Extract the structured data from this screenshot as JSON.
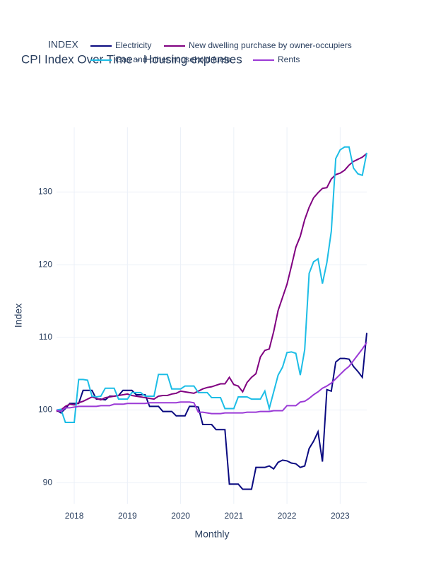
{
  "chart_data": {
    "type": "line",
    "title": "CPI Index Over Time - Housing expenses",
    "x_label": "Monthly",
    "y_label": "Index",
    "legend_title": "INDEX",
    "x": [
      "2017-09",
      "2017-10",
      "2017-11",
      "2017-12",
      "2018-01",
      "2018-02",
      "2018-03",
      "2018-04",
      "2018-05",
      "2018-06",
      "2018-07",
      "2018-08",
      "2018-09",
      "2018-10",
      "2018-11",
      "2018-12",
      "2019-01",
      "2019-02",
      "2019-03",
      "2019-04",
      "2019-05",
      "2019-06",
      "2019-07",
      "2019-08",
      "2019-09",
      "2019-10",
      "2019-11",
      "2019-12",
      "2020-01",
      "2020-02",
      "2020-03",
      "2020-04",
      "2020-05",
      "2020-06",
      "2020-07",
      "2020-08",
      "2020-09",
      "2020-10",
      "2020-11",
      "2020-12",
      "2021-01",
      "2021-02",
      "2021-03",
      "2021-04",
      "2021-05",
      "2021-06",
      "2021-07",
      "2021-08",
      "2021-09",
      "2021-10",
      "2021-11",
      "2021-12",
      "2022-01",
      "2022-02",
      "2022-03",
      "2022-04",
      "2022-05",
      "2022-06",
      "2022-07",
      "2022-08",
      "2022-09",
      "2022-10",
      "2022-11",
      "2022-12",
      "2023-01",
      "2023-02",
      "2023-03",
      "2023-04",
      "2023-05",
      "2023-06",
      "2023-07"
    ],
    "series": [
      {
        "name": "Electricity",
        "color": "#0a0a80",
        "values": [
          100.0,
          99.6,
          100.2,
          100.9,
          100.9,
          100.9,
          102.7,
          102.7,
          102.7,
          101.5,
          101.5,
          101.4,
          101.9,
          101.9,
          102.0,
          102.7,
          102.7,
          102.7,
          102.1,
          102.1,
          102.1,
          100.5,
          100.5,
          100.5,
          99.8,
          99.8,
          99.8,
          99.2,
          99.2,
          99.2,
          100.5,
          100.5,
          100.4,
          98.0,
          98.0,
          98.0,
          97.3,
          97.3,
          97.3,
          89.8,
          89.8,
          89.8,
          89.1,
          89.1,
          89.1,
          92.1,
          92.1,
          92.1,
          92.3,
          91.9,
          92.8,
          93.1,
          93.0,
          92.7,
          92.6,
          92.1,
          92.3,
          94.7,
          95.7,
          97.0,
          92.9,
          102.8,
          102.6,
          106.6,
          107.1,
          107.1,
          107.0,
          106.0,
          105.3,
          104.5,
          110.6
        ]
      },
      {
        "name": "New dwelling purchase by owner-occupiers",
        "color": "#800080",
        "values": [
          99.8,
          100.0,
          100.5,
          100.8,
          100.7,
          101.0,
          101.2,
          101.5,
          101.8,
          101.6,
          101.4,
          101.7,
          101.8,
          101.9,
          102.0,
          102.1,
          102.2,
          102.0,
          101.9,
          101.8,
          101.7,
          101.6,
          101.5,
          101.9,
          102.0,
          102.0,
          102.2,
          102.3,
          102.6,
          102.5,
          102.4,
          102.3,
          102.6,
          102.9,
          103.1,
          103.2,
          103.4,
          103.6,
          103.6,
          104.5,
          103.5,
          103.3,
          102.5,
          103.8,
          104.5,
          105.0,
          107.3,
          108.2,
          108.4,
          110.8,
          113.7,
          115.5,
          117.3,
          119.8,
          122.4,
          123.9,
          126.2,
          127.9,
          129.2,
          129.9,
          130.5,
          130.6,
          131.8,
          132.4,
          132.6,
          133.0,
          133.7,
          134.2,
          134.5,
          134.8,
          135.3
        ]
      },
      {
        "name": "Gas and other household fuels",
        "color": "#1cbde6",
        "values": [
          100.0,
          100.1,
          98.3,
          98.3,
          98.3,
          104.2,
          104.2,
          104.1,
          101.9,
          101.8,
          101.9,
          103.0,
          103.0,
          103.0,
          101.5,
          101.5,
          101.5,
          102.4,
          102.4,
          102.4,
          101.9,
          101.9,
          101.9,
          104.9,
          104.9,
          104.9,
          102.9,
          102.9,
          102.9,
          103.3,
          103.3,
          103.3,
          102.4,
          102.4,
          102.4,
          101.7,
          101.7,
          101.7,
          100.2,
          100.2,
          100.2,
          101.8,
          101.8,
          101.8,
          101.5,
          101.5,
          101.5,
          102.6,
          100.2,
          102.5,
          104.8,
          105.9,
          107.9,
          108.0,
          107.8,
          104.8,
          108.3,
          118.8,
          120.4,
          120.8,
          117.4,
          120.3,
          124.6,
          134.6,
          135.8,
          136.2,
          136.2,
          133.3,
          132.5,
          132.3,
          135.4
        ]
      },
      {
        "name": "Rents",
        "color": "#9b3ad6",
        "values": [
          100.0,
          99.8,
          100.3,
          100.3,
          100.4,
          100.5,
          100.5,
          100.5,
          100.5,
          100.5,
          100.6,
          100.6,
          100.6,
          100.8,
          100.8,
          100.8,
          100.9,
          100.9,
          100.9,
          100.9,
          100.9,
          101.0,
          101.0,
          101.0,
          101.0,
          101.0,
          101.0,
          101.0,
          101.1,
          101.1,
          101.1,
          101.0,
          99.7,
          99.7,
          99.6,
          99.5,
          99.5,
          99.5,
          99.6,
          99.6,
          99.6,
          99.6,
          99.6,
          99.7,
          99.7,
          99.7,
          99.8,
          99.8,
          99.8,
          99.9,
          99.9,
          99.9,
          100.6,
          100.6,
          100.6,
          101.1,
          101.2,
          101.6,
          102.1,
          102.5,
          103.0,
          103.3,
          103.7,
          104.3,
          104.9,
          105.5,
          106.0,
          106.8,
          107.6,
          108.4,
          109.3
        ]
      }
    ],
    "xlim": [
      2017.667,
      2023.5
    ],
    "xticks": [
      2018,
      2019,
      2020,
      2021,
      2022,
      2023
    ],
    "ylim": [
      87.1,
      138.9
    ],
    "yticks": [
      90,
      100,
      110,
      120,
      130
    ],
    "grid": true
  }
}
